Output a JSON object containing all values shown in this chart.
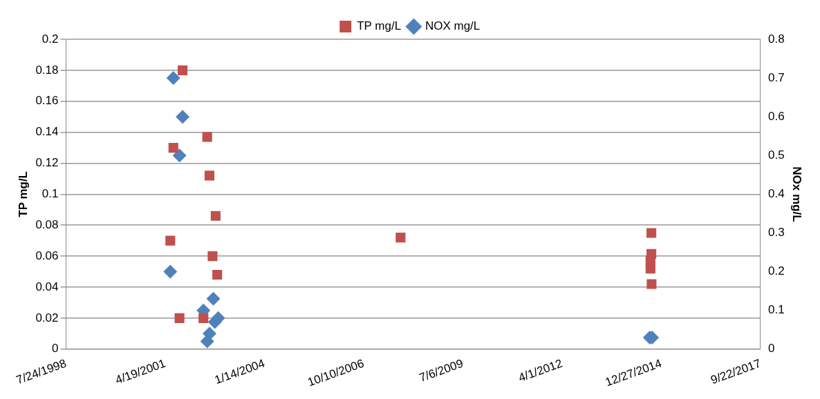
{
  "chart_data": {
    "type": "scatter",
    "ylabel": "TP mg/L",
    "y2label": "NOx mg/L",
    "xlim": [
      "1998-07-24",
      "2017-09-22"
    ],
    "xticks": [
      {
        "value": "1998-07-24",
        "label": "7/24/1998"
      },
      {
        "value": "2001-04-19",
        "label": "4/19/2001"
      },
      {
        "value": "2004-01-14",
        "label": "1/14/2004"
      },
      {
        "value": "2006-10-10",
        "label": "10/10/2006"
      },
      {
        "value": "2009-07-06",
        "label": "7/6/2009"
      },
      {
        "value": "2012-04-01",
        "label": "4/1/2012"
      },
      {
        "value": "2014-12-27",
        "label": "12/27/2014"
      },
      {
        "value": "2017-09-22",
        "label": "9/22/2017"
      }
    ],
    "ylim": [
      0,
      0.2
    ],
    "yticks": [
      0,
      0.02,
      0.04,
      0.06,
      0.08,
      0.1,
      0.12,
      0.14,
      0.16,
      0.18,
      0.2
    ],
    "y2lim": [
      0,
      0.8
    ],
    "y2ticks": [
      0,
      0.1,
      0.2,
      0.3,
      0.4,
      0.5,
      0.6,
      0.7,
      0.8
    ],
    "grid": "y",
    "legend": "top",
    "series": [
      {
        "name": "TP mg/L",
        "color": "#c0504d",
        "marker": "square",
        "x": [
          "2001-06-09",
          "2001-07-10",
          "2001-10-11",
          "2001-09-10",
          "2002-06-16",
          "2002-07-09",
          "2002-09-09",
          "2002-05-09",
          "2002-08-09",
          "2002-09-25",
          "2007-10-17",
          "2014-09-18",
          "2014-09-18",
          "2014-09-09",
          "2014-09-09",
          "2014-09-20"
        ],
        "values": [
          0.07,
          0.13,
          0.18,
          0.02,
          0.137,
          0.112,
          0.086,
          0.02,
          0.06,
          0.048,
          0.072,
          0.075,
          0.0615,
          0.057,
          0.052,
          0.042
        ]
      },
      {
        "name": "NOX mg/L",
        "color": "#4f81bd",
        "marker": "diamond",
        "axis": "y2",
        "x": [
          "2001-07-10",
          "2001-10-11",
          "2001-09-10",
          "2001-06-09",
          "2002-08-17",
          "2002-05-09",
          "2002-10-05",
          "2002-09-01",
          "2002-07-09",
          "2002-06-16",
          "2014-09-02",
          "2014-09-25"
        ],
        "values": [
          0.7,
          0.6,
          0.5,
          0.2,
          0.13,
          0.1,
          0.08,
          0.07,
          0.04,
          0.02,
          0.03,
          0.03
        ]
      }
    ]
  }
}
